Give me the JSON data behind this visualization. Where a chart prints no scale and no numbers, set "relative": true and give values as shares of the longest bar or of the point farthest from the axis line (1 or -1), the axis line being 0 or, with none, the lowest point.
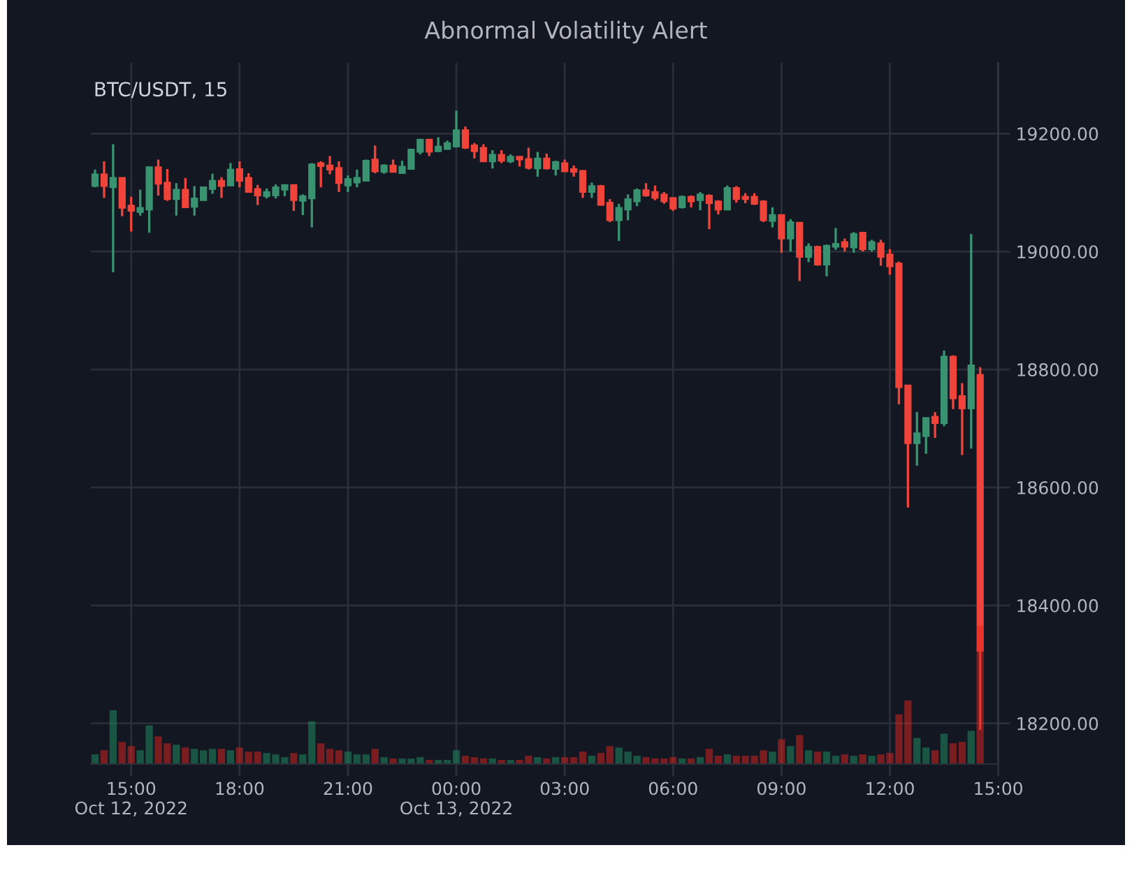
{
  "chart_data": [
    {
      "type": "candlestick",
      "title": "Abnormal Volatility Alert",
      "subtitle": "BTC/USDT, 15",
      "x": [
        "2022-10-12T14:00",
        "2022-10-12T14:15",
        "2022-10-12T14:30",
        "2022-10-12T14:45",
        "2022-10-12T15:00",
        "2022-10-12T15:15",
        "2022-10-12T15:30",
        "2022-10-12T15:45",
        "2022-10-12T16:00",
        "2022-10-12T16:15",
        "2022-10-12T16:30",
        "2022-10-12T16:45",
        "2022-10-12T17:00",
        "2022-10-12T17:15",
        "2022-10-12T17:30",
        "2022-10-12T17:45",
        "2022-10-12T18:00",
        "2022-10-12T18:15",
        "2022-10-12T18:30",
        "2022-10-12T18:45",
        "2022-10-12T19:00",
        "2022-10-12T19:15",
        "2022-10-12T19:30",
        "2022-10-12T19:45",
        "2022-10-12T20:00",
        "2022-10-12T20:15",
        "2022-10-12T20:30",
        "2022-10-12T20:45",
        "2022-10-12T21:00",
        "2022-10-12T21:15",
        "2022-10-12T21:30",
        "2022-10-12T21:45",
        "2022-10-12T22:00",
        "2022-10-12T22:15",
        "2022-10-12T22:30",
        "2022-10-12T22:45",
        "2022-10-12T23:00",
        "2022-10-12T23:15",
        "2022-10-12T23:30",
        "2022-10-12T23:45",
        "2022-10-13T00:00",
        "2022-10-13T00:15",
        "2022-10-13T00:30",
        "2022-10-13T00:45",
        "2022-10-13T01:00",
        "2022-10-13T01:15",
        "2022-10-13T01:30",
        "2022-10-13T01:45",
        "2022-10-13T02:00",
        "2022-10-13T02:15",
        "2022-10-13T02:30",
        "2022-10-13T02:45",
        "2022-10-13T03:00",
        "2022-10-13T03:15",
        "2022-10-13T03:30",
        "2022-10-13T03:45",
        "2022-10-13T04:00",
        "2022-10-13T04:15",
        "2022-10-13T04:30",
        "2022-10-13T04:45",
        "2022-10-13T05:00",
        "2022-10-13T05:15",
        "2022-10-13T05:30",
        "2022-10-13T05:45",
        "2022-10-13T06:00",
        "2022-10-13T06:15",
        "2022-10-13T06:30",
        "2022-10-13T06:45",
        "2022-10-13T07:00",
        "2022-10-13T07:15",
        "2022-10-13T07:30",
        "2022-10-13T07:45",
        "2022-10-13T08:00",
        "2022-10-13T08:15",
        "2022-10-13T08:30",
        "2022-10-13T08:45",
        "2022-10-13T09:00",
        "2022-10-13T09:15",
        "2022-10-13T09:30",
        "2022-10-13T09:45",
        "2022-10-13T10:00",
        "2022-10-13T10:15",
        "2022-10-13T10:30",
        "2022-10-13T10:45",
        "2022-10-13T11:00",
        "2022-10-13T11:15",
        "2022-10-13T11:30",
        "2022-10-13T11:45",
        "2022-10-13T12:00",
        "2022-10-13T12:15",
        "2022-10-13T12:30",
        "2022-10-13T12:45",
        "2022-10-13T13:00",
        "2022-10-13T13:15",
        "2022-10-13T13:30",
        "2022-10-13T13:45",
        "2022-10-13T14:00",
        "2022-10-13T14:15",
        "2022-10-13T14:30"
      ],
      "xlim": [
        "2022-10-12T13:53",
        "2022-10-13T15:00"
      ],
      "xticks": [
        {
          "value": "2022-10-12T15:00",
          "label": "15:00\nOct 12, 2022"
        },
        {
          "value": "2022-10-12T18:00",
          "label": "18:00"
        },
        {
          "value": "2022-10-12T21:00",
          "label": "21:00"
        },
        {
          "value": "2022-10-13T00:00",
          "label": "00:00\nOct 13, 2022"
        },
        {
          "value": "2022-10-13T03:00",
          "label": "03:00"
        },
        {
          "value": "2022-10-13T06:00",
          "label": "06:00"
        },
        {
          "value": "2022-10-13T09:00",
          "label": "09:00"
        },
        {
          "value": "2022-10-13T12:00",
          "label": "12:00"
        },
        {
          "value": "2022-10-13T15:00",
          "label": "15:00"
        }
      ],
      "ylim": [
        18131,
        19320
      ],
      "yticks": [
        {
          "value": 18200,
          "label": "18200.00"
        },
        {
          "value": 18400,
          "label": "18400.00"
        },
        {
          "value": 18600,
          "label": "18600.00"
        },
        {
          "value": 18800,
          "label": "18800.00"
        },
        {
          "value": 19000,
          "label": "19000.00"
        },
        {
          "value": 19200,
          "label": "19200.00"
        }
      ],
      "grid": true,
      "ohlc": [
        [
          19111,
          19139,
          19109,
          19131
        ],
        [
          19131,
          19153,
          19091,
          19111
        ],
        [
          19109,
          19182,
          18965,
          19125
        ],
        [
          19125,
          19125,
          19060,
          19074
        ],
        [
          19078,
          19093,
          19034,
          19069
        ],
        [
          19067,
          19105,
          19061,
          19074
        ],
        [
          19071,
          19144,
          19032,
          19143
        ],
        [
          19143,
          19156,
          19095,
          19115
        ],
        [
          19117,
          19140,
          19086,
          19089
        ],
        [
          19089,
          19116,
          19061,
          19105
        ],
        [
          19105,
          19125,
          19075,
          19075
        ],
        [
          19076,
          19111,
          19061,
          19090
        ],
        [
          19087,
          19109,
          19087,
          19109
        ],
        [
          19106,
          19132,
          19098,
          19120
        ],
        [
          19120,
          19126,
          19091,
          19111
        ],
        [
          19112,
          19150,
          19111,
          19139
        ],
        [
          19140,
          19153,
          19109,
          19120
        ],
        [
          19125,
          19133,
          19101,
          19101
        ],
        [
          19106,
          19113,
          19079,
          19095
        ],
        [
          19094,
          19107,
          19090,
          19101
        ],
        [
          19095,
          19114,
          19090,
          19109
        ],
        [
          19105,
          19113,
          19094,
          19113
        ],
        [
          19113,
          19113,
          19069,
          19087
        ],
        [
          19086,
          19097,
          19062,
          19094
        ],
        [
          19090,
          19150,
          19041,
          19148
        ],
        [
          19150,
          19153,
          19109,
          19145
        ],
        [
          19146,
          19162,
          19131,
          19139
        ],
        [
          19142,
          19153,
          19101,
          19116
        ],
        [
          19112,
          19129,
          19101,
          19123
        ],
        [
          19117,
          19139,
          19109,
          19125
        ],
        [
          19120,
          19156,
          19120,
          19154
        ],
        [
          19156,
          19180,
          19133,
          19136
        ],
        [
          19135,
          19148,
          19132,
          19146
        ],
        [
          19146,
          19156,
          19135,
          19135
        ],
        [
          19133,
          19154,
          19132,
          19144
        ],
        [
          19140,
          19174,
          19139,
          19173
        ],
        [
          19169,
          19191,
          19165,
          19190
        ],
        [
          19190,
          19191,
          19162,
          19169
        ],
        [
          19170,
          19194,
          19169,
          19178
        ],
        [
          19174,
          19188,
          19173,
          19184
        ],
        [
          19178,
          19239,
          19178,
          19206
        ],
        [
          19206,
          19212,
          19174,
          19176
        ],
        [
          19180,
          19184,
          19158,
          19170
        ],
        [
          19176,
          19182,
          19153,
          19153
        ],
        [
          19153,
          19172,
          19141,
          19164
        ],
        [
          19164,
          19172,
          19150,
          19154
        ],
        [
          19153,
          19165,
          19150,
          19161
        ],
        [
          19161,
          19162,
          19144,
          19156
        ],
        [
          19157,
          19176,
          19139,
          19142
        ],
        [
          19141,
          19169,
          19127,
          19158
        ],
        [
          19158,
          19166,
          19139,
          19141
        ],
        [
          19140,
          19154,
          19129,
          19152
        ],
        [
          19150,
          19156,
          19136,
          19136
        ],
        [
          19140,
          19146,
          19127,
          19135
        ],
        [
          19137,
          19138,
          19091,
          19101
        ],
        [
          19101,
          19117,
          19091,
          19111
        ],
        [
          19111,
          19113,
          19078,
          19079
        ],
        [
          19083,
          19089,
          19050,
          19053
        ],
        [
          19053,
          19081,
          19018,
          19074
        ],
        [
          19071,
          19097,
          19053,
          19089
        ],
        [
          19085,
          19107,
          19077,
          19104
        ],
        [
          19104,
          19116,
          19093,
          19095
        ],
        [
          19101,
          19112,
          19087,
          19091
        ],
        [
          19097,
          19101,
          19081,
          19085
        ],
        [
          19091,
          19091,
          19069,
          19073
        ],
        [
          19075,
          19095,
          19073,
          19093
        ],
        [
          19093,
          19095,
          19075,
          19085
        ],
        [
          19087,
          19101,
          19070,
          19097
        ],
        [
          19095,
          19097,
          19038,
          19082
        ],
        [
          19085,
          19087,
          19063,
          19071
        ],
        [
          19071,
          19112,
          19070,
          19108
        ],
        [
          19108,
          19111,
          19083,
          19089
        ],
        [
          19093,
          19099,
          19082,
          19089
        ],
        [
          19093,
          19099,
          19079,
          19081
        ],
        [
          19085,
          19087,
          19050,
          19053
        ],
        [
          19052,
          19075,
          19041,
          19062
        ],
        [
          19062,
          19062,
          18998,
          19022
        ],
        [
          19022,
          19055,
          19000,
          19050
        ],
        [
          19049,
          19049,
          18950,
          18991
        ],
        [
          18991,
          19014,
          18982,
          19008
        ],
        [
          19008,
          19010,
          18976,
          18978
        ],
        [
          18978,
          19012,
          18958,
          19010
        ],
        [
          19008,
          19040,
          19003,
          19013
        ],
        [
          19016,
          19022,
          19000,
          19008
        ],
        [
          19007,
          19033,
          18998,
          19030
        ],
        [
          19032,
          19033,
          19000,
          19004
        ],
        [
          19004,
          19020,
          19000,
          19016
        ],
        [
          19014,
          19020,
          18976,
          18991
        ],
        [
          18995,
          19004,
          18961,
          18975
        ],
        [
          18980,
          18983,
          18741,
          18770
        ],
        [
          18773,
          18773,
          18566,
          18675
        ],
        [
          18675,
          18728,
          18637,
          18692
        ],
        [
          18687,
          18718,
          18657,
          18718
        ],
        [
          18720,
          18728,
          18684,
          18709
        ],
        [
          18709,
          18832,
          18704,
          18822
        ],
        [
          18822,
          18824,
          18733,
          18751
        ],
        [
          18755,
          18777,
          18655,
          18734
        ],
        [
          18734,
          19030,
          18666,
          18807
        ],
        [
          18791,
          18804,
          18189,
          18323
        ]
      ],
      "colors": [
        "#3a9370",
        "#f0443a",
        "#3a9370",
        "#f0443a",
        "#f0443a",
        "#3a9370",
        "#3a9370",
        "#f0443a",
        "#f0443a",
        "#3a9370",
        "#f0443a",
        "#3a9370",
        "#3a9370",
        "#3a9370",
        "#f0443a",
        "#3a9370",
        "#f0443a",
        "#f0443a",
        "#f0443a",
        "#3a9370",
        "#3a9370",
        "#3a9370",
        "#f0443a",
        "#3a9370",
        "#3a9370",
        "#f0443a",
        "#f0443a",
        "#f0443a",
        "#3a9370",
        "#3a9370",
        "#3a9370",
        "#f0443a",
        "#3a9370",
        "#f0443a",
        "#3a9370",
        "#3a9370",
        "#3a9370",
        "#f0443a",
        "#3a9370",
        "#3a9370",
        "#3a9370",
        "#f0443a",
        "#f0443a",
        "#f0443a",
        "#3a9370",
        "#f0443a",
        "#3a9370",
        "#f0443a",
        "#f0443a",
        "#3a9370",
        "#f0443a",
        "#3a9370",
        "#f0443a",
        "#f0443a",
        "#f0443a",
        "#3a9370",
        "#f0443a",
        "#f0443a",
        "#3a9370",
        "#3a9370",
        "#3a9370",
        "#f0443a",
        "#f0443a",
        "#f0443a",
        "#f0443a",
        "#3a9370",
        "#f0443a",
        "#3a9370",
        "#f0443a",
        "#f0443a",
        "#3a9370",
        "#f0443a",
        "#f0443a",
        "#f0443a",
        "#f0443a",
        "#3a9370",
        "#f0443a",
        "#3a9370",
        "#f0443a",
        "#3a9370",
        "#f0443a",
        "#3a9370",
        "#3a9370",
        "#f0443a",
        "#3a9370",
        "#f0443a",
        "#3a9370",
        "#f0443a",
        "#f0443a",
        "#f0443a",
        "#f0443a",
        "#3a9370",
        "#3a9370",
        "#f0443a",
        "#3a9370",
        "#f0443a",
        "#f0443a",
        "#3a9370",
        "#f0443a"
      ]
    },
    {
      "type": "bar",
      "relative": true,
      "tick_labels": false,
      "x": [
        "2022-10-12T14:00",
        "2022-10-12T14:15",
        "2022-10-12T14:30",
        "2022-10-12T14:45",
        "2022-10-12T15:00",
        "2022-10-12T15:15",
        "2022-10-12T15:30",
        "2022-10-12T15:45",
        "2022-10-12T16:00",
        "2022-10-12T16:15",
        "2022-10-12T16:30",
        "2022-10-12T16:45",
        "2022-10-12T17:00",
        "2022-10-12T17:15",
        "2022-10-12T17:30",
        "2022-10-12T17:45",
        "2022-10-12T18:00",
        "2022-10-12T18:15",
        "2022-10-12T18:30",
        "2022-10-12T18:45",
        "2022-10-12T19:00",
        "2022-10-12T19:15",
        "2022-10-12T19:30",
        "2022-10-12T19:45",
        "2022-10-12T20:00",
        "2022-10-12T20:15",
        "2022-10-12T20:30",
        "2022-10-12T20:45",
        "2022-10-12T21:00",
        "2022-10-12T21:15",
        "2022-10-12T21:30",
        "2022-10-12T21:45",
        "2022-10-12T22:00",
        "2022-10-12T22:15",
        "2022-10-12T22:30",
        "2022-10-12T22:45",
        "2022-10-12T23:00",
        "2022-10-12T23:15",
        "2022-10-12T23:30",
        "2022-10-12T23:45",
        "2022-10-13T00:00",
        "2022-10-13T00:15",
        "2022-10-13T00:30",
        "2022-10-13T00:45",
        "2022-10-13T01:00",
        "2022-10-13T01:15",
        "2022-10-13T01:30",
        "2022-10-13T01:45",
        "2022-10-13T02:00",
        "2022-10-13T02:15",
        "2022-10-13T02:30",
        "2022-10-13T02:45",
        "2022-10-13T03:00",
        "2022-10-13T03:15",
        "2022-10-13T03:30",
        "2022-10-13T03:45",
        "2022-10-13T04:00",
        "2022-10-13T04:15",
        "2022-10-13T04:30",
        "2022-10-13T04:45",
        "2022-10-13T05:00",
        "2022-10-13T05:15",
        "2022-10-13T05:30",
        "2022-10-13T05:45",
        "2022-10-13T06:00",
        "2022-10-13T06:15",
        "2022-10-13T06:30",
        "2022-10-13T06:45",
        "2022-10-13T07:00",
        "2022-10-13T07:15",
        "2022-10-13T07:30",
        "2022-10-13T07:45",
        "2022-10-13T08:00",
        "2022-10-13T08:15",
        "2022-10-13T08:30",
        "2022-10-13T08:45",
        "2022-10-13T09:00",
        "2022-10-13T09:15",
        "2022-10-13T09:30",
        "2022-10-13T09:45",
        "2022-10-13T10:00",
        "2022-10-13T10:15",
        "2022-10-13T10:30",
        "2022-10-13T10:45",
        "2022-10-13T11:00",
        "2022-10-13T11:15",
        "2022-10-13T11:30",
        "2022-10-13T11:45",
        "2022-10-13T12:00",
        "2022-10-13T12:15",
        "2022-10-13T12:30",
        "2022-10-13T12:45",
        "2022-10-13T13:00",
        "2022-10-13T13:15",
        "2022-10-13T13:30",
        "2022-10-13T13:45",
        "2022-10-13T14:00",
        "2022-10-13T14:15",
        "2022-10-13T14:30"
      ],
      "xlim": [
        "2022-10-12T13:53",
        "2022-10-13T15:00"
      ],
      "xticks": [
        "2022-10-12T15:00",
        "2022-10-12T18:00",
        "2022-10-12T21:00",
        "2022-10-13T00:00",
        "2022-10-13T03:00",
        "2022-10-13T06:00",
        "2022-10-13T09:00",
        "2022-10-13T12:00",
        "2022-10-13T15:00"
      ],
      "values": [
        0.07,
        0.1,
        0.39,
        0.16,
        0.13,
        0.1,
        0.28,
        0.2,
        0.15,
        0.14,
        0.12,
        0.11,
        0.1,
        0.11,
        0.11,
        0.1,
        0.12,
        0.09,
        0.09,
        0.08,
        0.07,
        0.05,
        0.08,
        0.07,
        0.31,
        0.15,
        0.11,
        0.1,
        0.09,
        0.07,
        0.07,
        0.11,
        0.05,
        0.04,
        0.04,
        0.04,
        0.05,
        0.03,
        0.03,
        0.03,
        0.1,
        0.06,
        0.05,
        0.04,
        0.04,
        0.03,
        0.03,
        0.03,
        0.06,
        0.05,
        0.04,
        0.05,
        0.05,
        0.05,
        0.09,
        0.06,
        0.08,
        0.13,
        0.12,
        0.09,
        0.06,
        0.05,
        0.04,
        0.04,
        0.05,
        0.04,
        0.04,
        0.05,
        0.11,
        0.06,
        0.07,
        0.06,
        0.06,
        0.06,
        0.1,
        0.09,
        0.18,
        0.13,
        0.21,
        0.1,
        0.09,
        0.09,
        0.06,
        0.07,
        0.06,
        0.07,
        0.06,
        0.07,
        0.08,
        0.36,
        0.46,
        0.19,
        0.12,
        0.1,
        0.22,
        0.15,
        0.16,
        0.24,
        1
      ],
      "colors": [
        "#1a5443",
        "#7a1d20",
        "#1a5443",
        "#7a1d20",
        "#7a1d20",
        "#1a5443",
        "#1a5443",
        "#7a1d20",
        "#7a1d20",
        "#1a5443",
        "#7a1d20",
        "#1a5443",
        "#1a5443",
        "#1a5443",
        "#7a1d20",
        "#1a5443",
        "#7a1d20",
        "#7a1d20",
        "#7a1d20",
        "#1a5443",
        "#1a5443",
        "#1a5443",
        "#7a1d20",
        "#1a5443",
        "#1a5443",
        "#7a1d20",
        "#7a1d20",
        "#7a1d20",
        "#1a5443",
        "#1a5443",
        "#1a5443",
        "#7a1d20",
        "#1a5443",
        "#7a1d20",
        "#1a5443",
        "#1a5443",
        "#1a5443",
        "#7a1d20",
        "#1a5443",
        "#1a5443",
        "#1a5443",
        "#7a1d20",
        "#7a1d20",
        "#7a1d20",
        "#1a5443",
        "#7a1d20",
        "#1a5443",
        "#7a1d20",
        "#7a1d20",
        "#1a5443",
        "#7a1d20",
        "#1a5443",
        "#7a1d20",
        "#7a1d20",
        "#7a1d20",
        "#1a5443",
        "#7a1d20",
        "#7a1d20",
        "#1a5443",
        "#1a5443",
        "#1a5443",
        "#7a1d20",
        "#7a1d20",
        "#7a1d20",
        "#7a1d20",
        "#1a5443",
        "#7a1d20",
        "#1a5443",
        "#7a1d20",
        "#7a1d20",
        "#1a5443",
        "#7a1d20",
        "#7a1d20",
        "#7a1d20",
        "#7a1d20",
        "#1a5443",
        "#7a1d20",
        "#1a5443",
        "#7a1d20",
        "#1a5443",
        "#7a1d20",
        "#1a5443",
        "#1a5443",
        "#7a1d20",
        "#1a5443",
        "#7a1d20",
        "#1a5443",
        "#7a1d20",
        "#7a1d20",
        "#7a1d20",
        "#7a1d20",
        "#1a5443",
        "#1a5443",
        "#7a1d20",
        "#1a5443",
        "#7a1d20",
        "#7a1d20",
        "#1a5443",
        "#7a1d20"
      ]
    }
  ]
}
